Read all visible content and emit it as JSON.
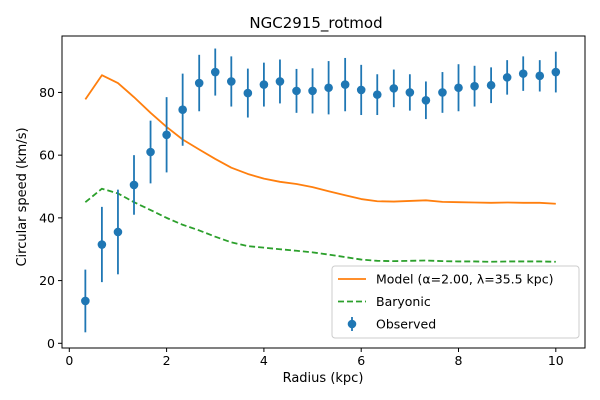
{
  "chart_data": {
    "type": "line",
    "title": "NGC2915_rotmod",
    "xlabel": "Radius (kpc)",
    "ylabel": "Circular speed (km/s)",
    "xlim": [
      -0.15,
      10.6
    ],
    "ylim": [
      -1.5,
      98
    ],
    "xticks": [
      0,
      2,
      4,
      6,
      8,
      10
    ],
    "yticks": [
      0,
      20,
      40,
      60,
      80
    ],
    "grid": false,
    "legend_position": "lower-right",
    "colors": {
      "model": "#ff7f0e",
      "baryonic": "#2ca02c",
      "observed": "#1f77b4"
    },
    "series": [
      {
        "name": "Model (α=2.00, λ=35.5 kpc)",
        "kind": "line",
        "style": "solid",
        "x": [
          0.33,
          0.67,
          1.0,
          1.33,
          1.67,
          2.0,
          2.33,
          2.67,
          3.0,
          3.33,
          3.67,
          4.0,
          4.33,
          4.67,
          5.0,
          5.33,
          5.67,
          6.0,
          6.33,
          6.67,
          7.0,
          7.33,
          7.67,
          8.0,
          8.33,
          8.67,
          9.0,
          9.33,
          9.67,
          10.0
        ],
        "y": [
          77.8,
          85.5,
          83.0,
          78.5,
          73.5,
          69.0,
          65.0,
          61.8,
          58.8,
          56.0,
          54.0,
          52.5,
          51.5,
          50.8,
          49.8,
          48.5,
          47.2,
          46.0,
          45.3,
          45.2,
          45.4,
          45.6,
          45.1,
          45.0,
          44.9,
          44.8,
          44.9,
          44.8,
          44.8,
          44.5
        ]
      },
      {
        "name": "Baryonic",
        "kind": "line",
        "style": "dashed",
        "x": [
          0.33,
          0.67,
          1.0,
          1.33,
          1.67,
          2.0,
          2.33,
          2.67,
          3.0,
          3.33,
          3.67,
          4.0,
          4.33,
          4.67,
          5.0,
          5.33,
          5.67,
          6.0,
          6.33,
          6.67,
          7.0,
          7.33,
          7.67,
          8.0,
          8.33,
          8.67,
          9.0,
          9.33,
          9.67,
          10.0
        ],
        "y": [
          45.0,
          49.3,
          47.8,
          45.0,
          42.5,
          40.0,
          37.8,
          36.0,
          34.0,
          32.2,
          31.0,
          30.5,
          30.0,
          29.5,
          29.0,
          28.3,
          27.5,
          26.7,
          26.3,
          26.2,
          26.3,
          26.4,
          26.2,
          26.1,
          26.1,
          26.0,
          26.1,
          26.1,
          26.1,
          26.0
        ]
      },
      {
        "name": "Observed",
        "kind": "errorbar",
        "x": [
          0.33,
          0.67,
          1.0,
          1.33,
          1.67,
          2.0,
          2.33,
          2.67,
          3.0,
          3.33,
          3.67,
          4.0,
          4.33,
          4.67,
          5.0,
          5.33,
          5.67,
          6.0,
          6.33,
          6.67,
          7.0,
          7.33,
          7.67,
          8.0,
          8.33,
          8.67,
          9.0,
          9.33,
          9.67,
          10.0
        ],
        "y": [
          13.5,
          31.5,
          35.5,
          50.5,
          61.0,
          66.5,
          74.5,
          83.0,
          86.5,
          83.5,
          79.8,
          82.5,
          83.5,
          80.5,
          80.5,
          81.5,
          82.5,
          80.8,
          79.3,
          81.3,
          80.0,
          77.5,
          80.0,
          81.5,
          82.0,
          82.3,
          84.8,
          86.0,
          85.3,
          86.5
        ],
        "yerr": [
          10.0,
          12.0,
          13.5,
          9.5,
          10.0,
          12.0,
          11.5,
          9.0,
          7.5,
          8.0,
          7.8,
          7.0,
          7.0,
          7.0,
          7.2,
          8.5,
          8.5,
          8.0,
          6.5,
          6.0,
          5.8,
          6.0,
          6.5,
          7.5,
          6.5,
          5.7,
          5.5,
          5.5,
          5.0,
          6.5
        ]
      }
    ]
  }
}
